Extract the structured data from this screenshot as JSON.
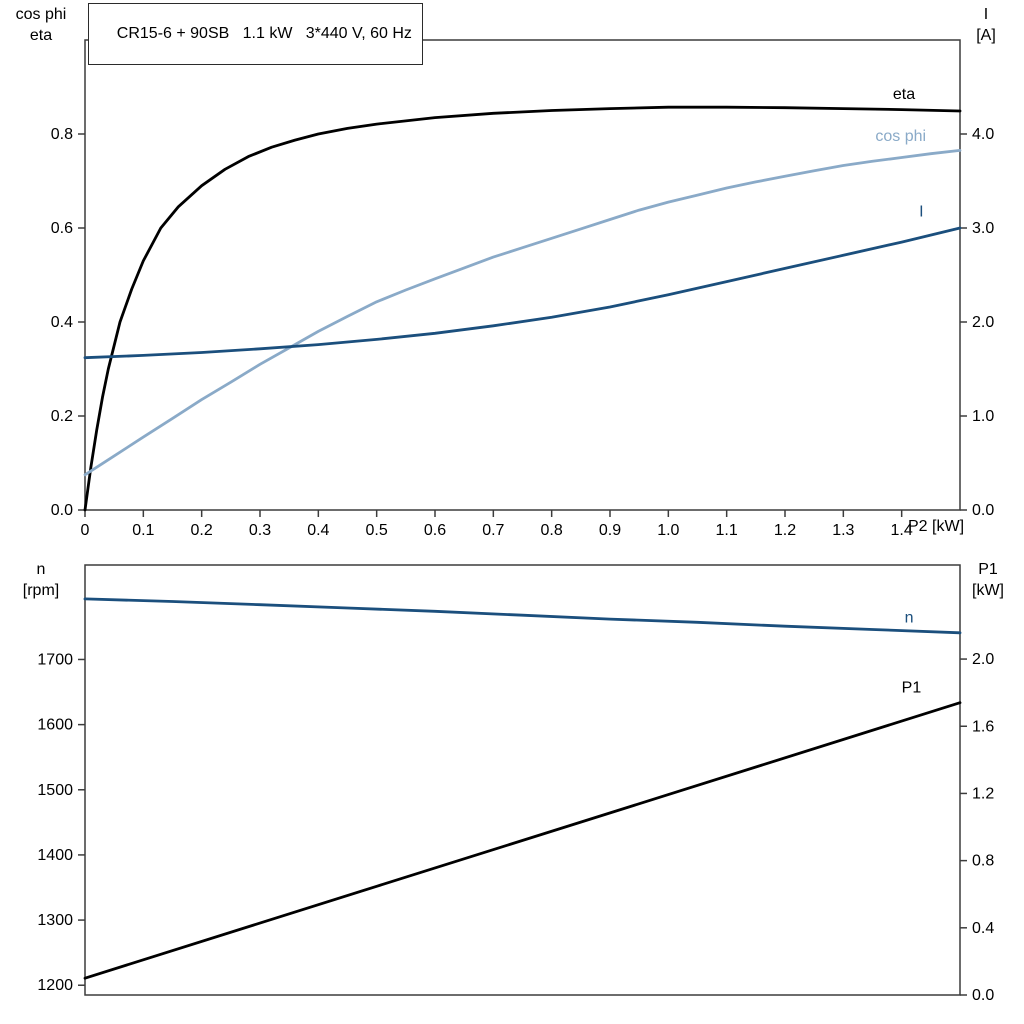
{
  "page": {
    "background": "#ffffff"
  },
  "colors": {
    "black": "#000000",
    "dark_blue": "#1b4f7d",
    "light_blue": "#8aaac8",
    "frame": "#3c3c3c"
  },
  "chart_data": [
    {
      "name": "motor-electrical-curves",
      "type": "line",
      "title": "CR15-6 + 90SB   1.1 kW   3*440 V, 60 Hz",
      "x_axis": {
        "label": "P2 [kW]",
        "range": [
          0,
          1.5
        ],
        "ticks": [
          "0",
          "0.1",
          "0.2",
          "0.3",
          "0.4",
          "0.5",
          "0.6",
          "0.7",
          "0.8",
          "0.9",
          "1.0",
          "1.1",
          "1.2",
          "1.3",
          "1.4"
        ]
      },
      "left_axis": {
        "label_lines": [
          "cos phi",
          "eta"
        ],
        "range": [
          0,
          1.0
        ],
        "ticks": [
          "0.0",
          "0.2",
          "0.4",
          "0.6",
          "0.8"
        ]
      },
      "right_axis": {
        "label_lines": [
          "I",
          "[A]"
        ],
        "range": [
          0,
          5.0
        ],
        "ticks": [
          "0.0",
          "1.0",
          "2.0",
          "3.0",
          "4.0"
        ]
      },
      "grid": false,
      "legend_position": "inline-labels",
      "series": [
        {
          "name": "eta",
          "label": "eta",
          "axis": "left",
          "color": "#000000",
          "label_at": [
            1.385,
            0.875
          ],
          "points": [
            [
              0,
              0
            ],
            [
              0.01,
              0.09
            ],
            [
              0.02,
              0.17
            ],
            [
              0.03,
              0.24
            ],
            [
              0.04,
              0.3
            ],
            [
              0.06,
              0.4
            ],
            [
              0.08,
              0.47
            ],
            [
              0.1,
              0.53
            ],
            [
              0.13,
              0.6
            ],
            [
              0.16,
              0.645
            ],
            [
              0.2,
              0.69
            ],
            [
              0.24,
              0.725
            ],
            [
              0.28,
              0.752
            ],
            [
              0.32,
              0.772
            ],
            [
              0.36,
              0.787
            ],
            [
              0.4,
              0.8
            ],
            [
              0.45,
              0.812
            ],
            [
              0.5,
              0.821
            ],
            [
              0.6,
              0.835
            ],
            [
              0.7,
              0.844
            ],
            [
              0.8,
              0.85
            ],
            [
              0.9,
              0.854
            ],
            [
              1.0,
              0.857
            ],
            [
              1.1,
              0.857
            ],
            [
              1.2,
              0.856
            ],
            [
              1.3,
              0.854
            ],
            [
              1.4,
              0.852
            ],
            [
              1.5,
              0.849
            ]
          ]
        },
        {
          "name": "cos-phi",
          "label": "cos phi",
          "axis": "left",
          "color": "#8aaac8",
          "label_at": [
            1.355,
            0.785
          ],
          "points": [
            [
              0,
              0.075
            ],
            [
              0.05,
              0.115
            ],
            [
              0.1,
              0.155
            ],
            [
              0.15,
              0.195
            ],
            [
              0.2,
              0.235
            ],
            [
              0.25,
              0.272
            ],
            [
              0.3,
              0.31
            ],
            [
              0.35,
              0.345
            ],
            [
              0.4,
              0.38
            ],
            [
              0.45,
              0.412
            ],
            [
              0.5,
              0.443
            ],
            [
              0.55,
              0.468
            ],
            [
              0.6,
              0.492
            ],
            [
              0.65,
              0.515
            ],
            [
              0.7,
              0.538
            ],
            [
              0.75,
              0.558
            ],
            [
              0.8,
              0.578
            ],
            [
              0.85,
              0.598
            ],
            [
              0.9,
              0.618
            ],
            [
              0.95,
              0.638
            ],
            [
              1.0,
              0.655
            ],
            [
              1.05,
              0.67
            ],
            [
              1.1,
              0.685
            ],
            [
              1.15,
              0.698
            ],
            [
              1.2,
              0.71
            ],
            [
              1.25,
              0.722
            ],
            [
              1.3,
              0.733
            ],
            [
              1.35,
              0.742
            ],
            [
              1.4,
              0.75
            ],
            [
              1.45,
              0.758
            ],
            [
              1.5,
              0.765
            ]
          ]
        },
        {
          "name": "current",
          "label": "I",
          "axis": "right",
          "color": "#1b4f7d",
          "label_at": [
            1.43,
            3.12
          ],
          "points": [
            [
              0,
              1.62
            ],
            [
              0.1,
              1.645
            ],
            [
              0.2,
              1.675
            ],
            [
              0.3,
              1.715
            ],
            [
              0.4,
              1.76
            ],
            [
              0.5,
              1.815
            ],
            [
              0.6,
              1.88
            ],
            [
              0.7,
              1.96
            ],
            [
              0.8,
              2.05
            ],
            [
              0.9,
              2.16
            ],
            [
              1.0,
              2.29
            ],
            [
              1.1,
              2.43
            ],
            [
              1.2,
              2.57
            ],
            [
              1.3,
              2.71
            ],
            [
              1.4,
              2.85
            ],
            [
              1.5,
              3.0
            ]
          ]
        }
      ]
    },
    {
      "name": "speed-power-curves",
      "type": "line",
      "title": "",
      "x_axis": {
        "label": "",
        "range": [
          0,
          1.5
        ],
        "ticks": []
      },
      "left_axis": {
        "label_lines": [
          "n",
          "[rpm]"
        ],
        "range": [
          1185,
          1845
        ],
        "ticks": [
          "1200",
          "1300",
          "1400",
          "1500",
          "1600",
          "1700"
        ]
      },
      "right_axis": {
        "label_lines": [
          "P1",
          "[kW]"
        ],
        "range": [
          0,
          2.56
        ],
        "ticks": [
          "0.0",
          "0.4",
          "0.8",
          "1.2",
          "1.6",
          "2.0"
        ]
      },
      "grid": false,
      "legend_position": "inline-labels",
      "series": [
        {
          "name": "speed",
          "label": "n",
          "axis": "left",
          "color": "#1b4f7d",
          "label_at": [
            1.405,
            1757
          ],
          "points": [
            [
              0,
              1793
            ],
            [
              0.15,
              1789
            ],
            [
              0.3,
              1784
            ],
            [
              0.45,
              1779
            ],
            [
              0.6,
              1774
            ],
            [
              0.75,
              1768
            ],
            [
              0.9,
              1762
            ],
            [
              1.05,
              1757
            ],
            [
              1.2,
              1751
            ],
            [
              1.35,
              1746
            ],
            [
              1.5,
              1741
            ]
          ]
        },
        {
          "name": "p1-power",
          "label": "P1",
          "axis": "right",
          "color": "#000000",
          "label_at": [
            1.4,
            1.8
          ],
          "points": [
            [
              0,
              0.1
            ],
            [
              0.5,
              0.647
            ],
            [
              1.0,
              1.193
            ],
            [
              1.5,
              1.74
            ]
          ]
        }
      ]
    }
  ]
}
